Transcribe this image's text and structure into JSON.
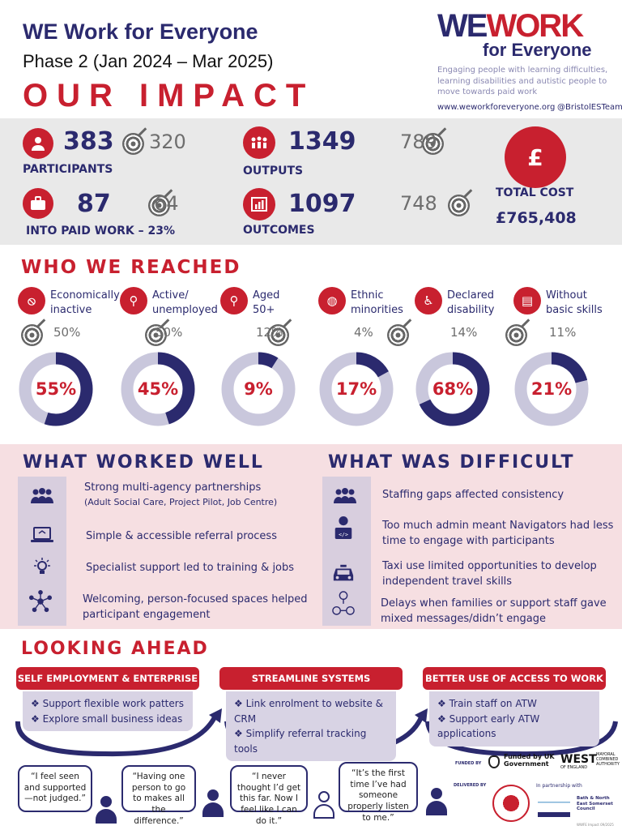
{
  "header": {
    "title": "WE Work for Everyone",
    "phase": "Phase 2 (Jan 2024 – Mar 2025)",
    "impact": "OUR IMPACT",
    "logo_we": "WE",
    "logo_work": "WORK",
    "logo_for": "for Everyone",
    "tagline": "Engaging people with learning difficulties, learning disabilities and autistic people to move towards paid work",
    "website": "www.weworkforeveryone.org",
    "twitter": "@BristolESTeam"
  },
  "stats": {
    "participants": {
      "value": "383",
      "target": "320",
      "label": "PARTICIPANTS"
    },
    "paid_work": {
      "value": "87",
      "target": "64",
      "label": "INTO PAID WORK – 23%"
    },
    "outputs": {
      "value": "1349",
      "target": "789",
      "label": "OUTPUTS"
    },
    "outcomes": {
      "value": "1097",
      "target": "748",
      "label": "OUTCOMES"
    },
    "cost": {
      "symbol": "£",
      "label": "TOTAL COST",
      "value": "£765,408"
    }
  },
  "reached": {
    "title": "WHO WE REACHED",
    "items": [
      {
        "label": "Economically inactive",
        "target": "50%",
        "value": "55%",
        "fraction": 0.55
      },
      {
        "label": "Active/ unemployed",
        "target": "50%",
        "value": "45%",
        "fraction": 0.45
      },
      {
        "label": "Aged 50+",
        "target": "12%",
        "value": "9%",
        "fraction": 0.09
      },
      {
        "label": "Ethnic minorities",
        "target": "4%",
        "value": "17%",
        "fraction": 0.17
      },
      {
        "label": "Declared disability",
        "target": "14%",
        "value": "68%",
        "fraction": 0.68
      },
      {
        "label": "Without basic skills",
        "target": "11%",
        "value": "21%",
        "fraction": 0.21
      }
    ]
  },
  "worked": {
    "title": "WHAT WORKED WELL",
    "items": [
      "Strong multi-agency partnerships",
      "(Adult Social Care, Project Pilot, Job Centre)",
      "Simple & accessible referral process",
      "Specialist support led to training & jobs",
      "Welcoming, person-focused spaces helped participant engagement"
    ]
  },
  "difficult": {
    "title": "WHAT WAS DIFFICULT",
    "items": [
      "Staffing gaps affected consistency",
      "Too much admin meant Navigators had less time to engage with participants",
      "Taxi use limited opportunities to develop independent travel skills",
      "Delays when families or support staff gave mixed messages/didn’t engage"
    ]
  },
  "ahead": {
    "title": "LOOKING AHEAD",
    "cols": [
      {
        "title": "SELF EMPLOYMENT & ENTERPRISE",
        "items": [
          "❖ Support flexible work patters",
          "❖ Explore small business ideas"
        ]
      },
      {
        "title": "STREAMLINE SYSTEMS",
        "items": [
          "❖ Link enrolment to website & CRM",
          "❖ Simplify referral  tracking tools"
        ]
      },
      {
        "title": "BETTER USE OF ACCESS TO WORK",
        "items": [
          "❖ Train staff on ATW",
          "❖ Support early ATW applications"
        ]
      }
    ]
  },
  "quotes": [
    "“I feel seen and supported—not judged.”",
    "“Having one person to go to makes all the difference.”",
    "“I never thought I’d get this far. Now I feel like I can do it.”",
    "“It’s the first time I’ve had someone properly listen to me.”"
  ],
  "footer": {
    "funded_by": "FUNDED BY",
    "funded_text": "Funded by UK Government",
    "west": "WEST",
    "west_sub": "OF ENGLAND",
    "mayoral": "MAYORAL COMBINED AUTHORITY",
    "delivered_by": "DELIVERED BY",
    "partnership": "In partnership with",
    "bath": "Bath & North East Somerset Council",
    "ref": "WWFE Impact 09/2025"
  },
  "colors": {
    "navy": "#2b2a6e",
    "red": "#c8202f",
    "grey_band": "#e9e9e9",
    "pink_band": "#f6dfe2",
    "ring_light": "#c9c7dc"
  }
}
